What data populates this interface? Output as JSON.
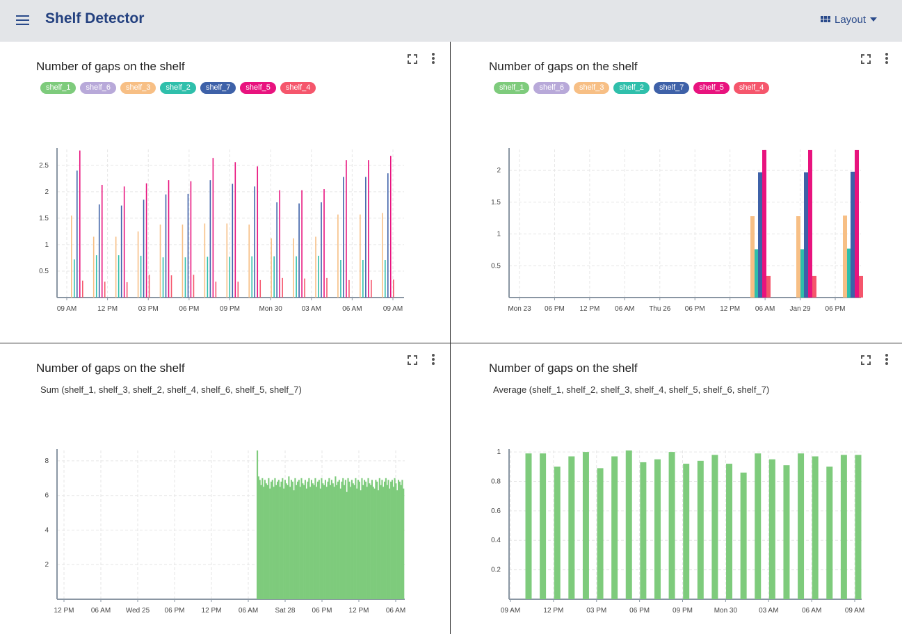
{
  "app": {
    "title": "Shelf Detector",
    "layout_label": "Layout"
  },
  "colors": {
    "shelf_1": "#7ecb7c",
    "shelf_6": "#b8a9d9",
    "shelf_3": "#f7bf85",
    "shelf_2": "#2fbfab",
    "shelf_7": "#3e61a8",
    "shelf_5": "#e8137e",
    "shelf_4": "#f5566c",
    "aggregate": "#7ecb7c"
  },
  "panels": [
    {
      "title": "Number of gaps on the shelf",
      "legend": [
        "shelf_1",
        "shelf_6",
        "shelf_3",
        "shelf_2",
        "shelf_7",
        "shelf_5",
        "shelf_4"
      ],
      "subtitle": ""
    },
    {
      "title": "Number of gaps on the shelf",
      "legend": [
        "shelf_1",
        "shelf_6",
        "shelf_3",
        "shelf_2",
        "shelf_7",
        "shelf_5",
        "shelf_4"
      ],
      "subtitle": ""
    },
    {
      "title": "Number of gaps on the shelf",
      "legend": [],
      "subtitle": "Sum (shelf_1, shelf_3, shelf_2, shelf_4, shelf_6, shelf_5, shelf_7)"
    },
    {
      "title": "Number of gaps on the shelf",
      "legend": [],
      "subtitle": "Average (shelf_1, shelf_2, shelf_3, shelf_4, shelf_5, shelf_6, shelf_7)"
    }
  ],
  "chart_data": [
    {
      "type": "bar",
      "x_ticks": [
        "09 AM",
        "12 PM",
        "03 PM",
        "06 PM",
        "09 PM",
        "Mon 30",
        "03 AM",
        "06 AM",
        "09 AM"
      ],
      "y_ticks": [
        "0.5",
        "1",
        "1.5",
        "2",
        "2.5"
      ],
      "ylim": [
        0,
        2.8
      ],
      "series": [
        {
          "name": "shelf_3",
          "values": [
            1.55,
            1.15,
            1.15,
            1.25,
            1.38,
            1.38,
            1.4,
            1.4,
            1.38,
            1.12,
            1.12,
            1.15,
            1.57,
            1.57,
            1.6
          ]
        },
        {
          "name": "shelf_2",
          "values": [
            0.72,
            0.8,
            0.8,
            0.79,
            0.76,
            0.76,
            0.77,
            0.77,
            0.78,
            0.78,
            0.78,
            0.79,
            0.71,
            0.71,
            0.71
          ]
        },
        {
          "name": "shelf_7",
          "values": [
            2.4,
            1.76,
            1.74,
            1.85,
            1.95,
            1.96,
            2.22,
            2.15,
            2.1,
            1.8,
            1.78,
            1.8,
            2.28,
            2.28,
            2.35
          ]
        },
        {
          "name": "shelf_5",
          "values": [
            2.78,
            2.13,
            2.1,
            2.16,
            2.22,
            2.2,
            2.64,
            2.56,
            2.48,
            2.03,
            2.03,
            2.05,
            2.6,
            2.6,
            2.68
          ]
        },
        {
          "name": "shelf_4",
          "values": [
            0.32,
            0.3,
            0.29,
            0.43,
            0.42,
            0.43,
            0.3,
            0.3,
            0.33,
            0.37,
            0.36,
            0.37,
            0.33,
            0.33,
            0.34
          ]
        }
      ]
    },
    {
      "type": "bar",
      "x_ticks": [
        "Mon 23",
        "06 PM",
        "12 PM",
        "06 AM",
        "Thu 26",
        "06 PM",
        "12 PM",
        "06 AM",
        "Jan 29",
        "06 PM"
      ],
      "y_ticks": [
        "0.5",
        "1",
        "1.5",
        "2"
      ],
      "ylim": [
        0,
        2.33
      ],
      "series": [
        {
          "name": "shelf_3",
          "values": [
            1.28,
            1.28,
            1.29
          ]
        },
        {
          "name": "shelf_2",
          "values": [
            0.76,
            0.76,
            0.77
          ]
        },
        {
          "name": "shelf_7",
          "values": [
            1.97,
            1.97,
            1.98
          ]
        },
        {
          "name": "shelf_5",
          "values": [
            2.32,
            2.32,
            2.32
          ]
        },
        {
          "name": "shelf_4",
          "values": [
            0.34,
            0.34,
            0.34
          ]
        }
      ]
    },
    {
      "type": "bar",
      "x_ticks": [
        "12 PM",
        "06 AM",
        "Wed 25",
        "06 PM",
        "12 PM",
        "06 AM",
        "Sat 28",
        "06 PM",
        "12 PM",
        "06 AM"
      ],
      "y_ticks": [
        "2",
        "4",
        "6",
        "8"
      ],
      "ylim": [
        0,
        8.6
      ],
      "series": [
        {
          "name": "Sum",
          "values": [
            8.6,
            7.1,
            6.9,
            6.6,
            7.0,
            6.5,
            6.9,
            6.7,
            6.6,
            7.0,
            6.4,
            6.8,
            6.9,
            6.5,
            7.0,
            6.6,
            6.8,
            6.9,
            6.5,
            6.8,
            7.0,
            6.4,
            6.9,
            6.7,
            6.6,
            7.1,
            6.5,
            6.9,
            6.8,
            6.3,
            7.0,
            6.6,
            6.8,
            6.9,
            6.5,
            7.0,
            6.7,
            6.6,
            6.9,
            6.4,
            6.8,
            7.0,
            6.5,
            6.9,
            6.7,
            6.6,
            7.0,
            6.5,
            6.8,
            6.9,
            6.4,
            7.0,
            6.7,
            6.6,
            6.9,
            6.5,
            6.8,
            7.0,
            6.6,
            6.9,
            6.7,
            6.5,
            7.1,
            6.6,
            6.8,
            6.9,
            6.4,
            6.8,
            7.0,
            6.6,
            6.9,
            6.2,
            7.0,
            6.8,
            6.5,
            6.9,
            6.7,
            6.6,
            7.0,
            6.4,
            6.9,
            6.8,
            6.3,
            7.0,
            6.6,
            6.9,
            6.8,
            6.5,
            7.0,
            6.7,
            6.6,
            6.9,
            6.5,
            6.4,
            6.9,
            6.8,
            6.3,
            7.0,
            6.6,
            6.9,
            6.5,
            6.8,
            7.0,
            6.6,
            6.9,
            6.4,
            6.8,
            6.9,
            6.5,
            7.0,
            6.7,
            6.3,
            6.9,
            6.8,
            6.6,
            6.9,
            6.4
          ]
        }
      ]
    },
    {
      "type": "bar",
      "x_ticks": [
        "09 AM",
        "12 PM",
        "03 PM",
        "06 PM",
        "09 PM",
        "Mon 30",
        "03 AM",
        "06 AM",
        "09 AM"
      ],
      "y_ticks": [
        "0.2",
        "0.4",
        "0.6",
        "0.8",
        "1"
      ],
      "ylim": [
        0,
        1.01
      ],
      "series": [
        {
          "name": "Average",
          "values": [
            0.99,
            0.99,
            0.9,
            0.97,
            1.0,
            0.89,
            0.97,
            1.01,
            0.93,
            0.95,
            1.0,
            0.92,
            0.94,
            0.98,
            0.92,
            0.86,
            0.99,
            0.95,
            0.91,
            0.99,
            0.97,
            0.9,
            0.98,
            0.98
          ]
        }
      ]
    }
  ]
}
